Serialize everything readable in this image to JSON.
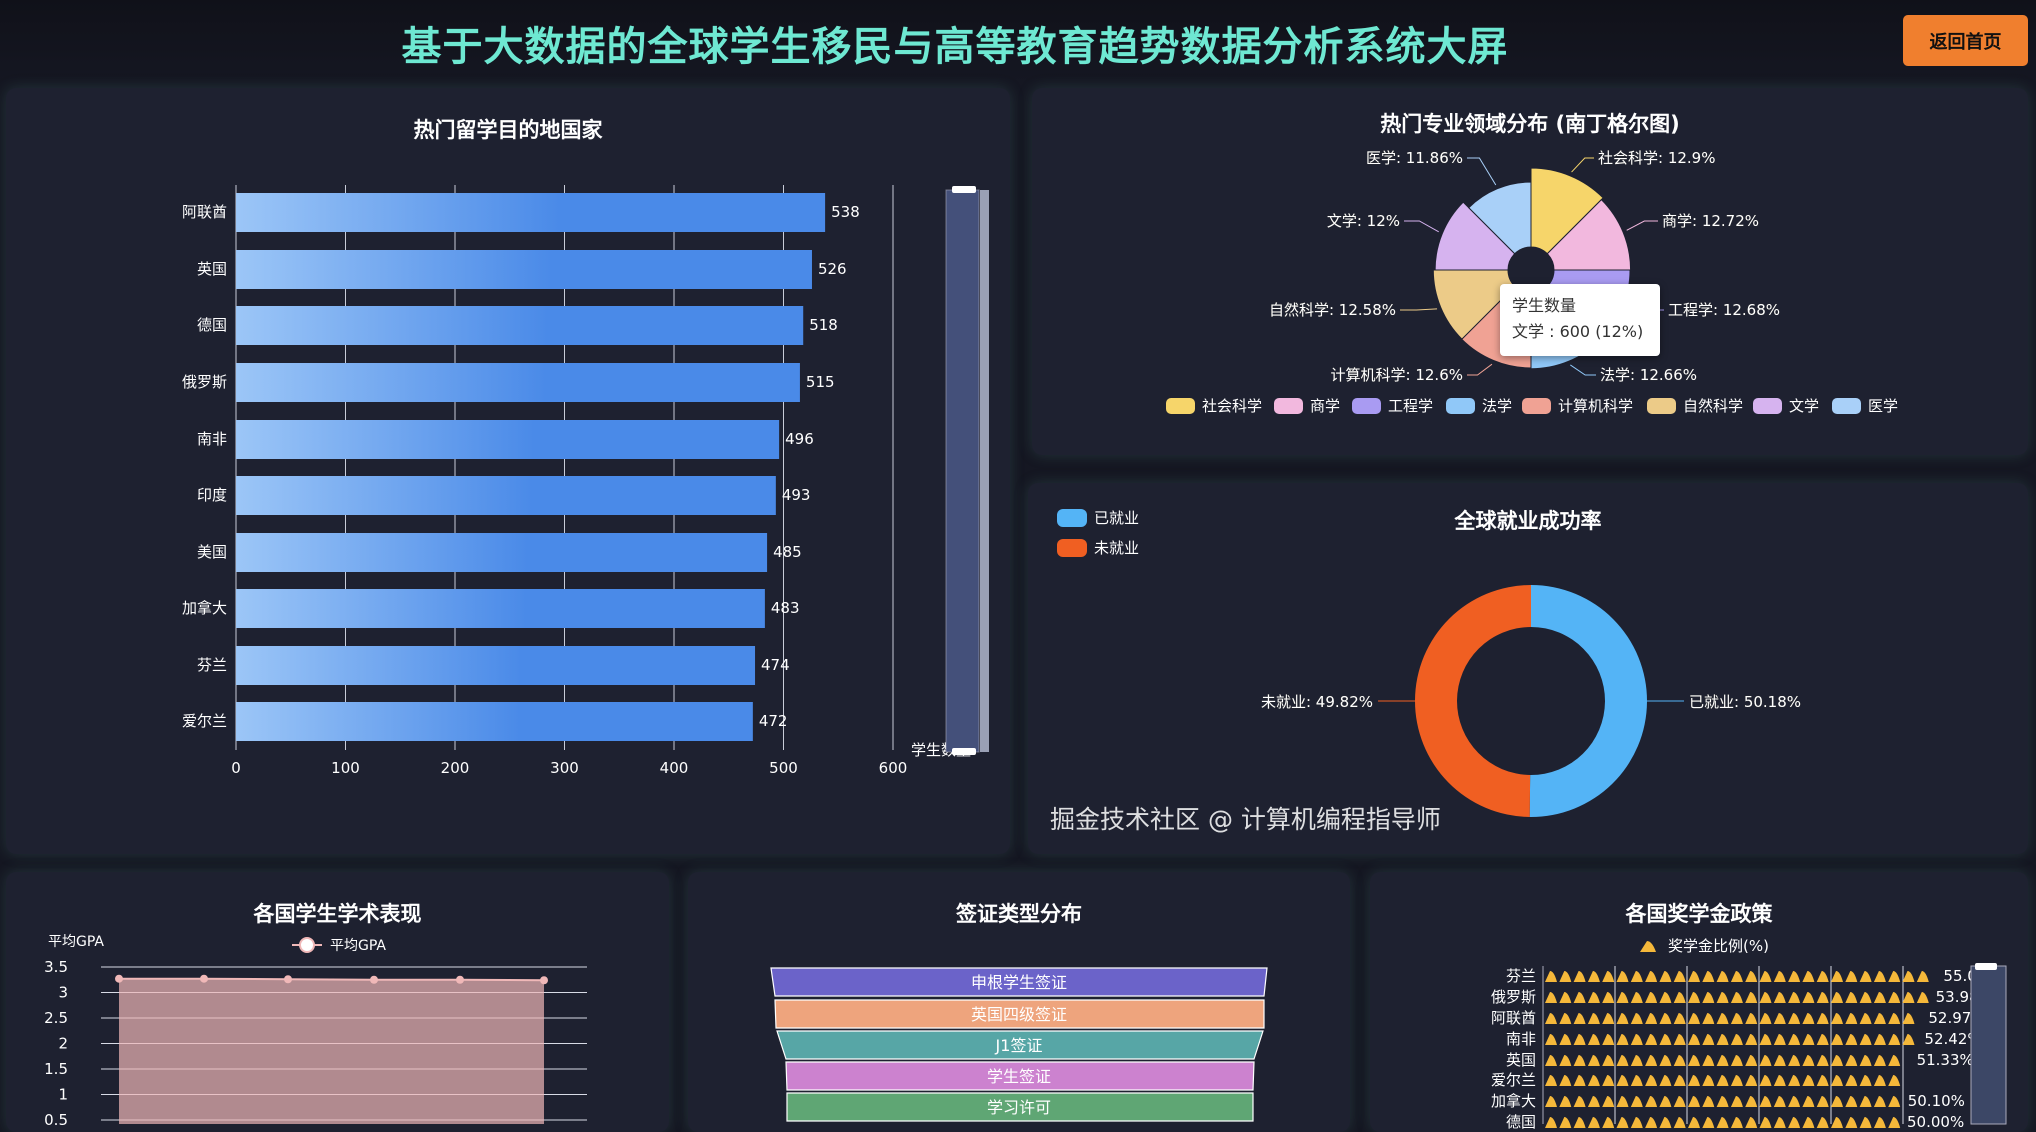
{
  "header": {
    "title": "基于大数据的全球学生移民与高等教育趋势数据分析系统大屏",
    "home_button": "返回首页"
  },
  "chart_data": [
    {
      "type": "bar",
      "title": "热门留学目的地国家",
      "orientation": "horizontal",
      "categories": [
        "阿联酋",
        "英国",
        "德国",
        "俄罗斯",
        "南非",
        "印度",
        "美国",
        "加拿大",
        "芬兰",
        "爱尔兰"
      ],
      "values": [
        538,
        526,
        518,
        515,
        496,
        493,
        485,
        483,
        474,
        472
      ],
      "xlim": [
        0,
        600
      ],
      "xticks": [
        "0",
        "100",
        "200",
        "300",
        "400",
        "500",
        "600"
      ],
      "xlabel": "学生数量",
      "bar_color": "#4a8ae8",
      "grid": true,
      "datazoom": "vertical-right"
    },
    {
      "type": "pie",
      "rose": true,
      "title": "热门专业领域分布 (南丁格尔图)",
      "categories": [
        "社会科学",
        "商学",
        "工程学",
        "法学",
        "计算机科学",
        "自然科学",
        "文学",
        "医学"
      ],
      "percents": [
        12.9,
        12.72,
        12.68,
        12.66,
        12.6,
        12.58,
        12,
        11.86
      ],
      "labels": [
        "社会科学: 12.9%",
        "商学: 12.72%",
        "工程学: 12.68%",
        "法学: 12.66%",
        "计算机科学: 12.6%",
        "自然科学: 12.58%",
        "文学: 12%",
        "医学: 11.86%"
      ],
      "colors": [
        "#f6d56a",
        "#f2b8de",
        "#a99bf2",
        "#90c8f8",
        "#f0a294",
        "#eccb88",
        "#d6b3ef",
        "#a9d0f8"
      ],
      "legend": "bottom",
      "tooltip": {
        "title": "学生数量",
        "text": "文学 : 600 (12%)"
      }
    },
    {
      "type": "pie",
      "donut": true,
      "title": "全球就业成功率",
      "categories": [
        "已就业",
        "未就业"
      ],
      "percents": [
        50.18,
        49.82
      ],
      "labels": [
        "已就业: 50.18%",
        "未就业: 49.82%"
      ],
      "colors": [
        "#54b4f6",
        "#f05f22"
      ],
      "legend": "top-left"
    },
    {
      "type": "area",
      "title": "各国学生学术表现",
      "ylabel": "平均GPA",
      "series": [
        {
          "name": "平均GPA",
          "values": [
            3.27,
            3.27,
            3.26,
            3.25,
            3.25,
            3.24
          ]
        }
      ],
      "ylim": [
        0,
        3.5
      ],
      "yticks": [
        "3.5",
        "3",
        "2.5",
        "2",
        "1.5",
        "1",
        "0.5"
      ],
      "color": "#f0b8b8",
      "grid": true,
      "legend": "top"
    },
    {
      "type": "funnel",
      "title": "签证类型分布",
      "categories": [
        "申根学生签证",
        "英国四级签证",
        "J1签证",
        "学生签证",
        "学习许可"
      ],
      "colors": [
        "#6b63c9",
        "#eea47d",
        "#57a6a6",
        "#cc82cf",
        "#5fa674"
      ]
    },
    {
      "type": "bar",
      "pictorial": true,
      "title": "各国奖学金政策",
      "orientation": "horizontal",
      "categories": [
        "芬兰",
        "俄罗斯",
        "阿联酋",
        "南非",
        "英国",
        "爱尔兰",
        "加拿大",
        "德国"
      ],
      "values": [
        55.06,
        53.98,
        52.97,
        52.42,
        51.33,
        50.6,
        50.1,
        50.0
      ],
      "value_labels": [
        "55.06%",
        "53.98%",
        "52.97%",
        "52.42%",
        "51.33%",
        "",
        "50.10%",
        "50.00%"
      ],
      "series_name": "奖学金比例(%)",
      "color": "#f5b83a",
      "xlim": [
        0,
        60
      ],
      "legend": "top"
    }
  ],
  "watermark": "掘金技术社区 @ 计算机编程指导师"
}
